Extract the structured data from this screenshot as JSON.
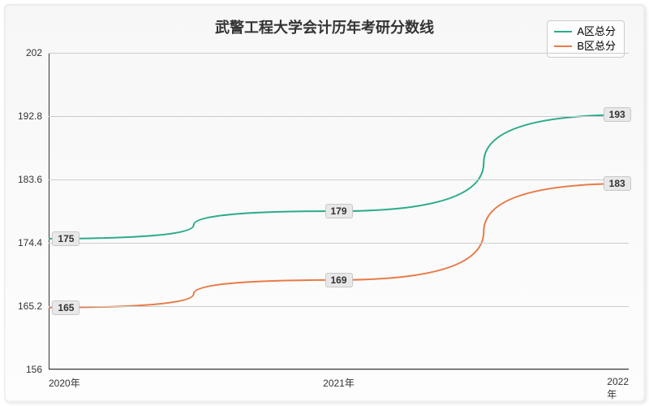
{
  "chart": {
    "type": "line",
    "title": "武警工程大学会计历年考研分数线",
    "title_fontsize": 18,
    "background_gradient_top": "#f7f7f7",
    "background_gradient_bottom": "#fdfdfd",
    "grid_color": "#cccccc",
    "axis_color": "#333333",
    "text_color": "#333333",
    "label_fontsize": 12,
    "x_categories": [
      "2020年",
      "2021年",
      "2022年"
    ],
    "ylim": [
      156,
      202
    ],
    "yticks": [
      156,
      165.2,
      174.4,
      183.6,
      192.8,
      202
    ],
    "series": [
      {
        "name": "A区总分",
        "color": "#2bab8a",
        "line_width": 2,
        "values": [
          175,
          179,
          193
        ],
        "labels": [
          "175",
          "179",
          "193"
        ]
      },
      {
        "name": "B区总分",
        "color": "#e87b47",
        "line_width": 2,
        "values": [
          165,
          169,
          183
        ],
        "labels": [
          "165",
          "169",
          "183"
        ]
      }
    ],
    "legend": {
      "position": "top-right",
      "border_color": "#cccccc",
      "background": "#fdfdfd"
    },
    "data_label_style": {
      "background": "#e8e8e8",
      "border_color": "#c8c8c8",
      "font_weight": "bold"
    }
  }
}
